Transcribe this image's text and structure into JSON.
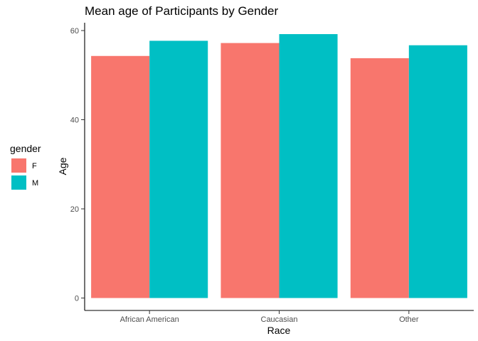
{
  "chart_data": {
    "type": "bar",
    "title": "Mean age of Participants by Gender",
    "xlabel": "Race",
    "ylabel": "Age",
    "categories": [
      "African American",
      "Caucasian",
      "Other"
    ],
    "series": [
      {
        "name": "F",
        "color": "#F8766D",
        "values": [
          54.3,
          57.2,
          53.8
        ]
      },
      {
        "name": "M",
        "color": "#00BFC4",
        "values": [
          57.7,
          59.2,
          56.7
        ]
      }
    ],
    "yticks": [
      0,
      20,
      40,
      60
    ],
    "ylim": [
      0,
      62.2
    ],
    "grid": false,
    "legend": {
      "title": "gender",
      "position": "left"
    }
  }
}
